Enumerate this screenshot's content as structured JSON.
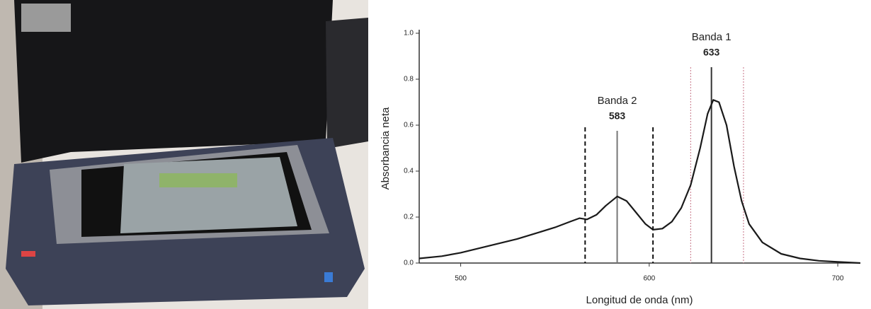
{
  "chart_data": {
    "type": "line",
    "x_label": "Longitud de onda (nm)",
    "y_label": "Absorbancia neta",
    "x": [
      478,
      490,
      500,
      510,
      520,
      530,
      540,
      550,
      558,
      563,
      567,
      572,
      577,
      583,
      588,
      593,
      598,
      602,
      607,
      612,
      617,
      622,
      627,
      631,
      634,
      637,
      641,
      645,
      649,
      653,
      660,
      670,
      680,
      690,
      700,
      712
    ],
    "values": [
      0.02,
      0.03,
      0.045,
      0.065,
      0.085,
      0.105,
      0.13,
      0.155,
      0.18,
      0.195,
      0.19,
      0.21,
      0.25,
      0.29,
      0.27,
      0.22,
      0.17,
      0.145,
      0.15,
      0.18,
      0.24,
      0.34,
      0.5,
      0.65,
      0.71,
      0.7,
      0.6,
      0.42,
      0.27,
      0.17,
      0.09,
      0.04,
      0.02,
      0.01,
      0.005,
      0.0
    ],
    "color": "#1a1a1a",
    "xlim": [
      478,
      712
    ],
    "ylim": [
      0,
      1.0
    ],
    "xticks": [
      500,
      600,
      700
    ],
    "yticks": [
      {
        "value": 0,
        "label": "0.0"
      },
      {
        "value": 0.2,
        "label": "0.2"
      },
      {
        "value": 0.4,
        "label": "0.4"
      },
      {
        "value": 0.6,
        "label": "0.6"
      },
      {
        "value": 0.8,
        "label": "0.8"
      },
      {
        "value": 1.0,
        "label": "1.0"
      }
    ],
    "vlines": [
      {
        "x": 566,
        "style": "dashed",
        "color": "#111111"
      },
      {
        "x": 602,
        "style": "dashed",
        "color": "#111111"
      },
      {
        "x": 622,
        "style": "dotted",
        "color": "#d08a9a"
      },
      {
        "x": 650,
        "style": "dotted",
        "color": "#d08a9a"
      }
    ],
    "annotations": [
      {
        "label": "Banda 2",
        "x": 583,
        "color": "#777777"
      },
      {
        "label": "Banda 1",
        "x": 633,
        "color": "#333333"
      }
    ]
  }
}
